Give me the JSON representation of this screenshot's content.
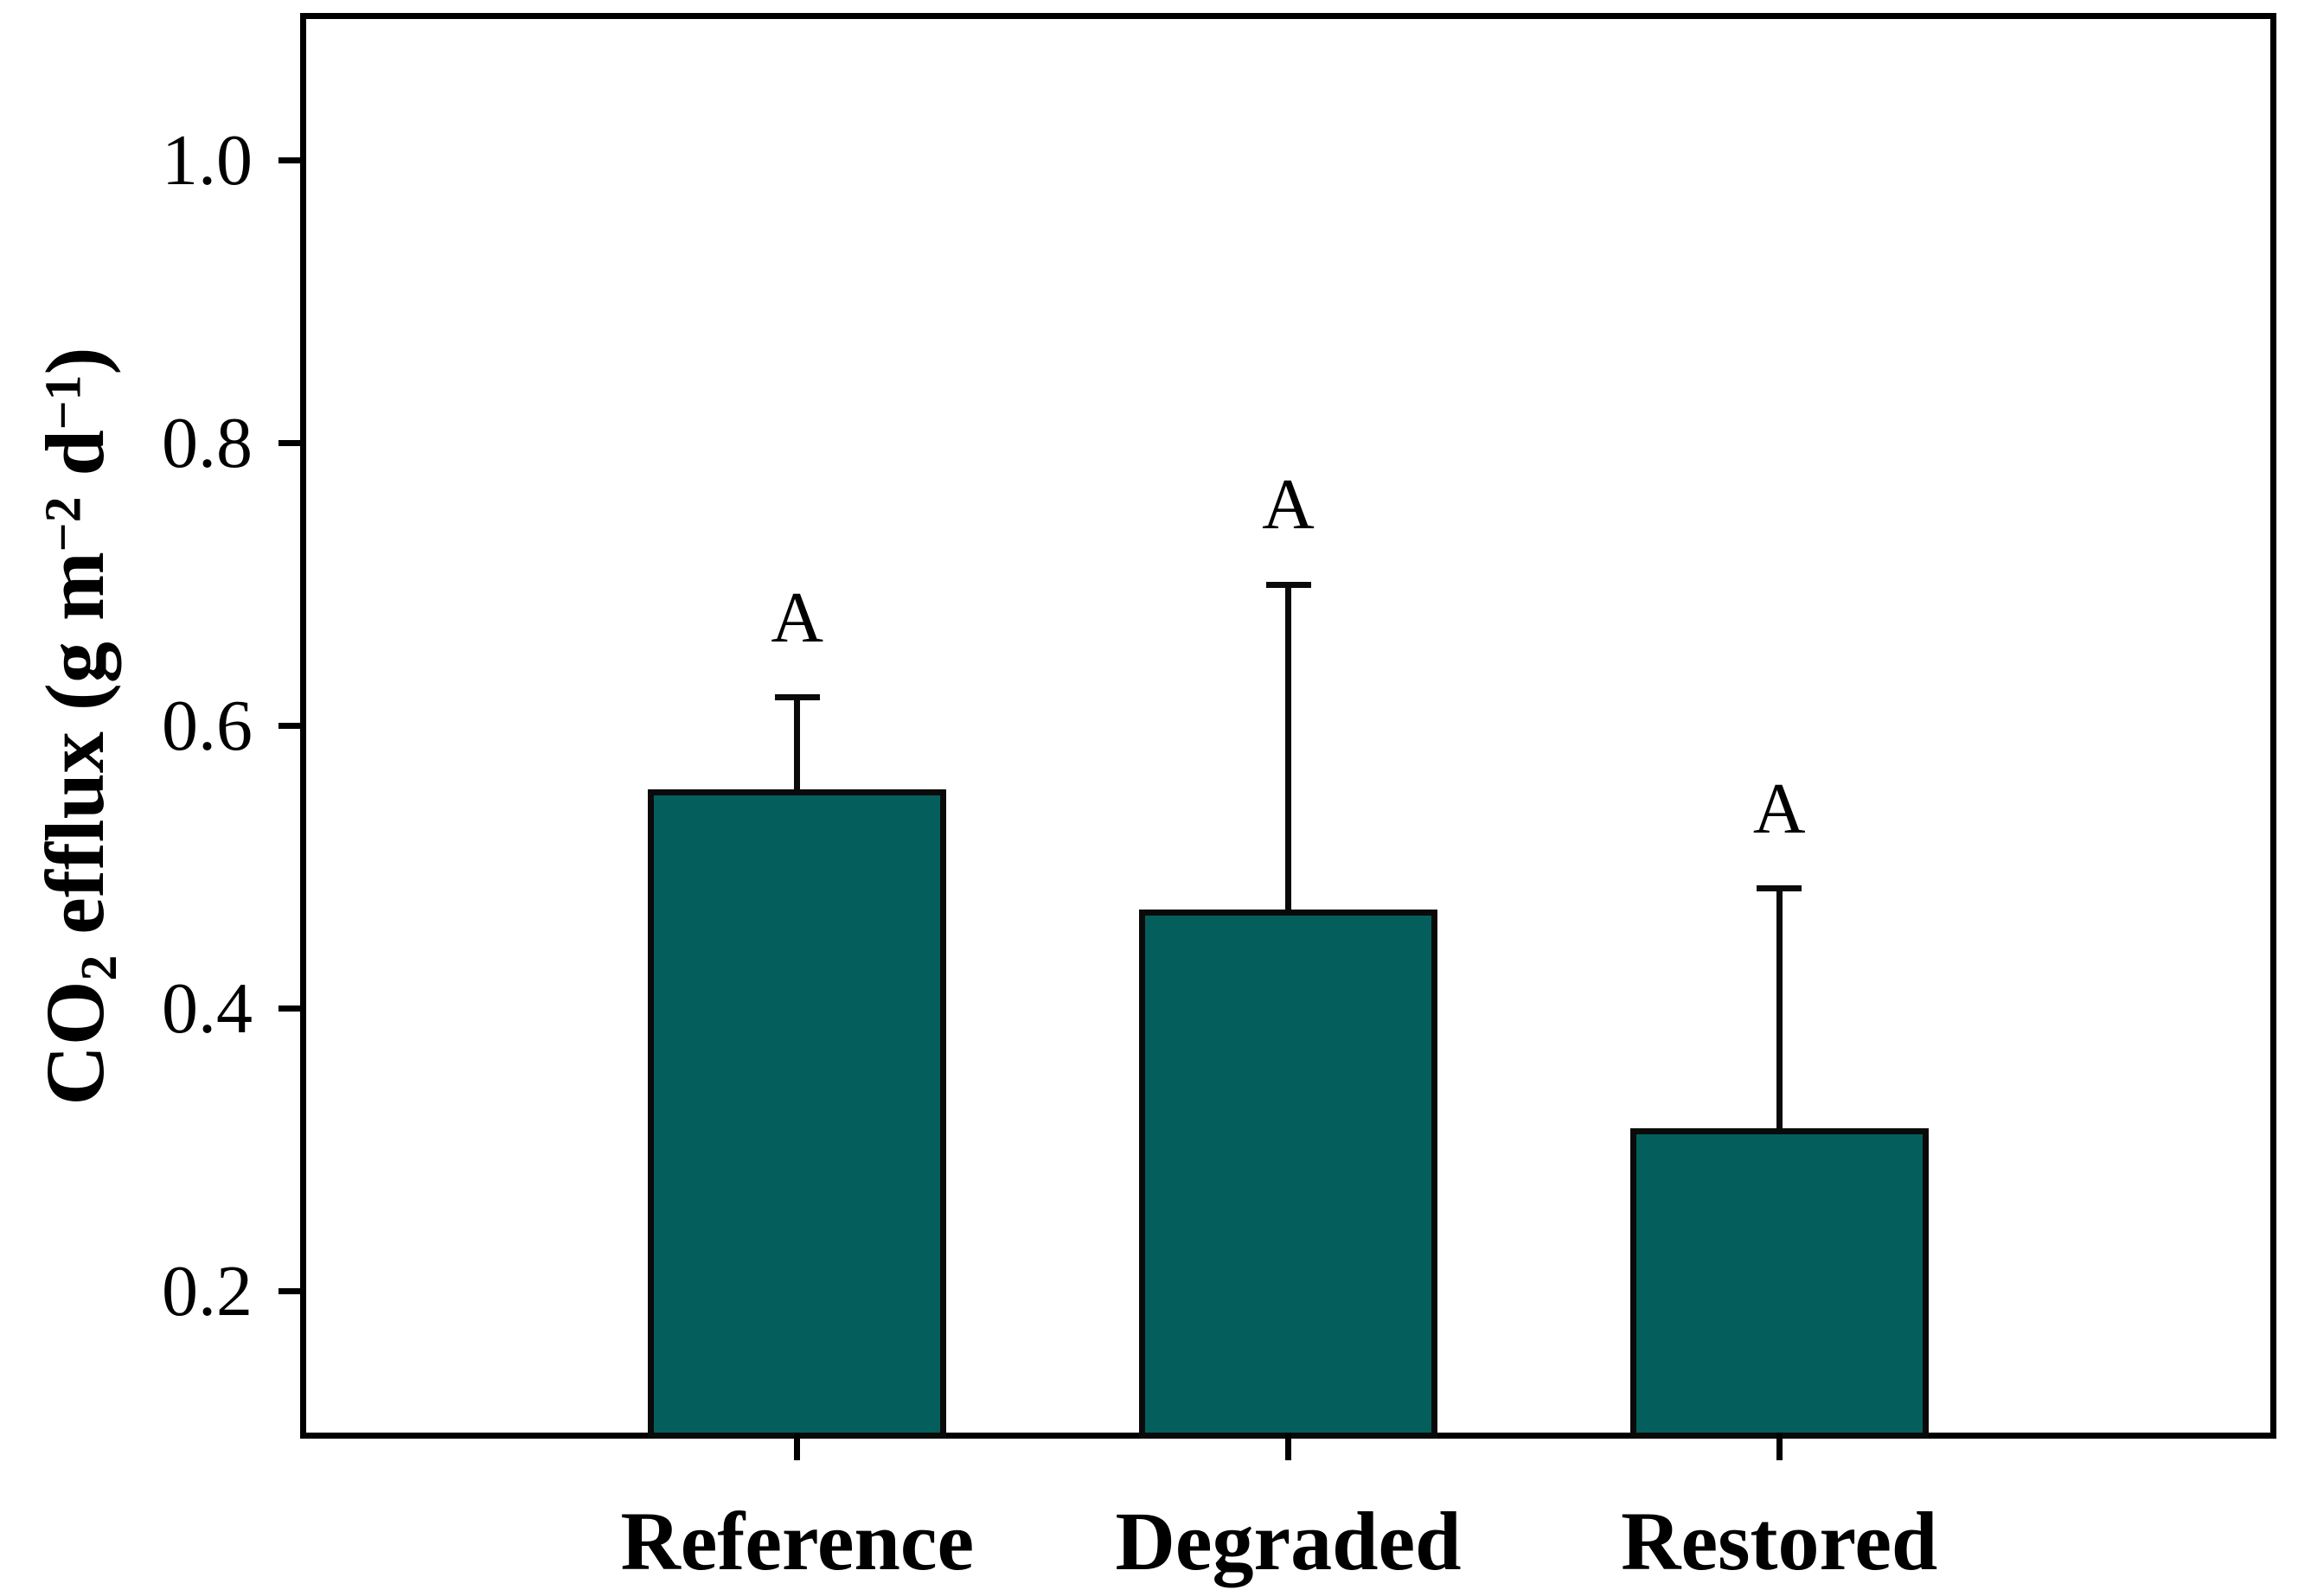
{
  "chart_data": {
    "type": "bar",
    "title": "",
    "categories": [
      "Reference",
      "Degraded",
      "Restored"
    ],
    "values": [
      0.555,
      0.47,
      0.315
    ],
    "upper_errors": [
      0.065,
      0.23,
      0.17
    ],
    "sig_letters": [
      "A",
      "A",
      "A"
    ],
    "ylabel": "CO2 efflux (g m−2 d−1)",
    "ylabel_segments": [
      {
        "type": "text",
        "text": "CO"
      },
      {
        "type": "sub",
        "text": "2"
      },
      {
        "type": "text",
        "text": " efflux (g m"
      },
      {
        "type": "sup",
        "text": "−2"
      },
      {
        "type": "text",
        "text": " d"
      },
      {
        "type": "sup",
        "text": "−1"
      },
      {
        "type": "text",
        "text": ")"
      }
    ],
    "xlabel": "",
    "ylim": [
      0.1,
      1.1
    ],
    "yticks": [
      0.2,
      0.4,
      0.6,
      0.8,
      1.0
    ],
    "ytick_labels": [
      "0.2",
      "0.4",
      "0.6",
      "0.8",
      "1.0"
    ],
    "grid": false,
    "legend": "none",
    "colors": {
      "bar_fill": "#045f5c",
      "bar_outline": "#0a0a0a",
      "error_bar": "#0a0a0a",
      "axis": "#000000",
      "background": "#ffffff"
    }
  }
}
